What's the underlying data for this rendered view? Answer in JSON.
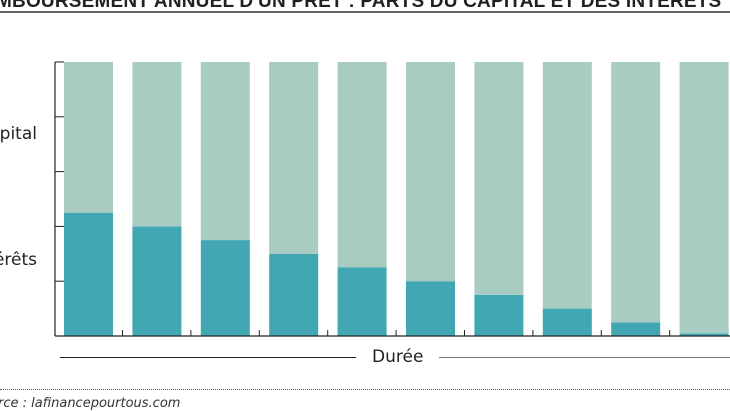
{
  "chart_data": {
    "type": "bar",
    "stacked": true,
    "percent_stacked": true,
    "title": "MBOURSEMENT ANNUEL D'UN PRÊT : PARTS DU CAPITAL ET DES INTÉRÊTS",
    "xlabel": "Durée",
    "categories": [
      "",
      "",
      "",
      "",
      "",
      "",
      "",
      "",
      "",
      ""
    ],
    "series": [
      {
        "name": "érêts",
        "color": "#41a7b3",
        "values": [
          0.45,
          0.4,
          0.35,
          0.3,
          0.25,
          0.2,
          0.15,
          0.1,
          0.05,
          0.01
        ]
      },
      {
        "name": "pital",
        "color": "#a8cbc2",
        "values": [
          0.55,
          0.6,
          0.65,
          0.7,
          0.75,
          0.8,
          0.85,
          0.9,
          0.95,
          0.99
        ]
      }
    ],
    "ylim": [
      0,
      1
    ],
    "y_tick_count": 6,
    "grid": false,
    "source": "rce : lafinancepourtous.com"
  }
}
